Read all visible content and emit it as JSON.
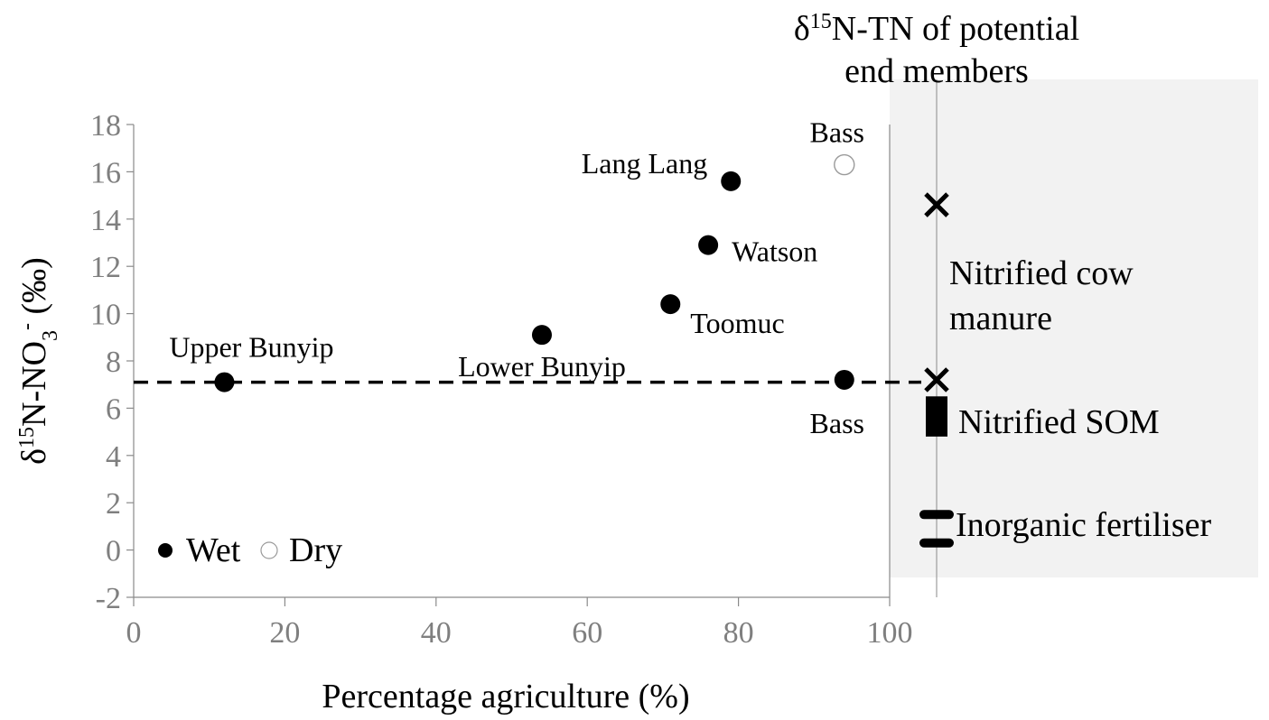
{
  "chart_data": {
    "type": "scatter",
    "title": "",
    "xlabel": "Percentage agriculture (%)",
    "ylabel": {
      "prefix": "δ",
      "sup1": "15",
      "main": "N-NO",
      "sub": "3",
      "sup2": "-",
      "suffix": " (‰)"
    },
    "xlim": [
      0,
      100
    ],
    "ylim": [
      -2,
      18
    ],
    "x_ticks": [
      0,
      20,
      40,
      60,
      80,
      100
    ],
    "y_ticks": [
      -2,
      0,
      2,
      4,
      6,
      8,
      10,
      12,
      14,
      16,
      18
    ],
    "grid": false,
    "series": [
      {
        "name": "Wet",
        "marker": "filled-circle",
        "color": "#000000",
        "points": [
          {
            "x": 12,
            "y": 7.1,
            "label": "Upper Bunyip"
          },
          {
            "x": 54,
            "y": 9.1,
            "label": "Lower Bunyip"
          },
          {
            "x": 71,
            "y": 10.4,
            "label": "Toomuc"
          },
          {
            "x": 76,
            "y": 12.9,
            "label": "Watson"
          },
          {
            "x": 79,
            "y": 15.6,
            "label": "Lang Lang"
          },
          {
            "x": 94,
            "y": 7.2,
            "label": "Bass"
          }
        ]
      },
      {
        "name": "Dry",
        "marker": "open-circle",
        "color": "#000000",
        "points": [
          {
            "x": 94,
            "y": 16.3,
            "label": "Bass"
          }
        ]
      }
    ],
    "reference_line": {
      "y": 7.1,
      "style": "dashed"
    },
    "legend": {
      "placement": "bottom-left",
      "items": [
        "Wet",
        "Dry"
      ]
    },
    "end_members": {
      "title_prefix": "δ",
      "title_sup": "15",
      "title_rest": "N-TN of potential",
      "title_line2": "end members",
      "panel_color": "#f2f2f2",
      "items": [
        {
          "label_lines": [
            "Nitrified  cow",
            "manure"
          ],
          "marker": "x",
          "values": [
            14.6,
            7.2
          ]
        },
        {
          "label_lines": [
            "Nitrified SOM"
          ],
          "marker": "bar",
          "range": [
            4.8,
            6.5
          ]
        },
        {
          "label_lines": [
            "Inorganic fertiliser"
          ],
          "marker": "dashes",
          "values": [
            1.5,
            0.3
          ]
        }
      ]
    }
  }
}
